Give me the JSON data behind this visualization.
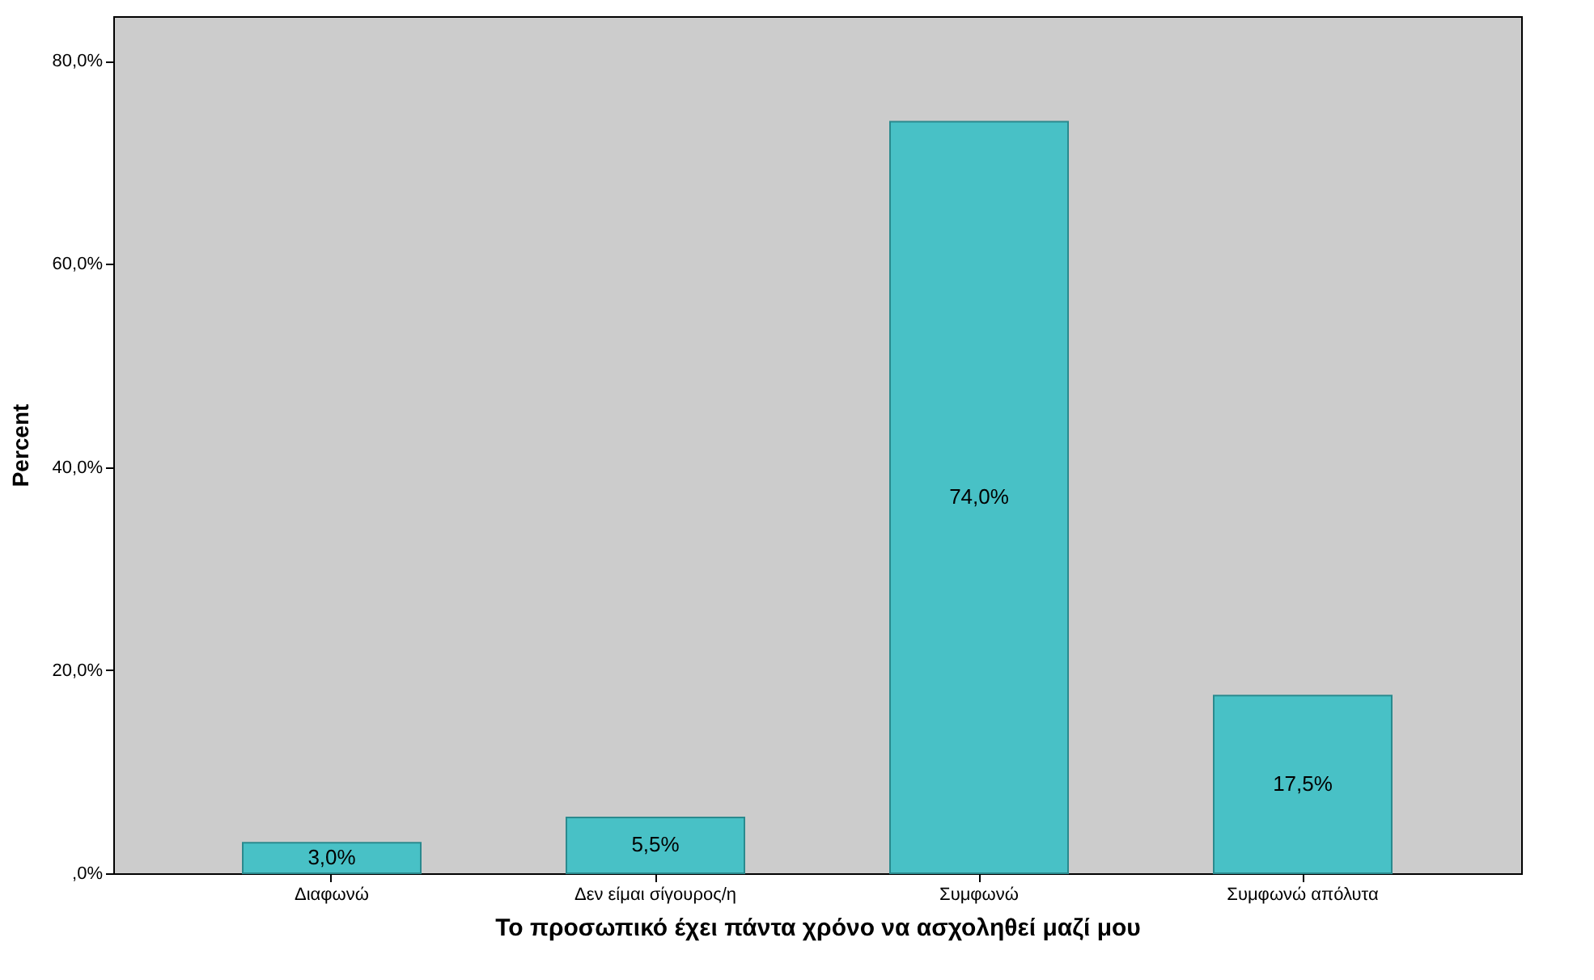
{
  "chart_data": {
    "type": "bar",
    "xlabel": "Το προσωπικό έχει πάντα χρόνο να ασχοληθεί μαζί μου",
    "ylabel": "Percent",
    "categories": [
      "Διαφωνώ",
      "Δεν είμαι σίγουρος/η",
      "Συμφωνώ",
      "Συμφωνώ απόλυτα"
    ],
    "values": [
      3.0,
      5.5,
      74.0,
      17.5
    ],
    "color": "#48c1c6",
    "value_labels": [
      "3,0%",
      "5,5%",
      "74,0%",
      "17,5%"
    ],
    "ylim": [
      0,
      84.4
    ],
    "yticks": [
      {
        "value": 0,
        "label": ",0%"
      },
      {
        "value": 20,
        "label": "20,0%"
      },
      {
        "value": 40,
        "label": "40,0%"
      },
      {
        "value": 60,
        "label": "60,0%"
      },
      {
        "value": 80,
        "label": "80,0%"
      }
    ],
    "grid": false
  }
}
